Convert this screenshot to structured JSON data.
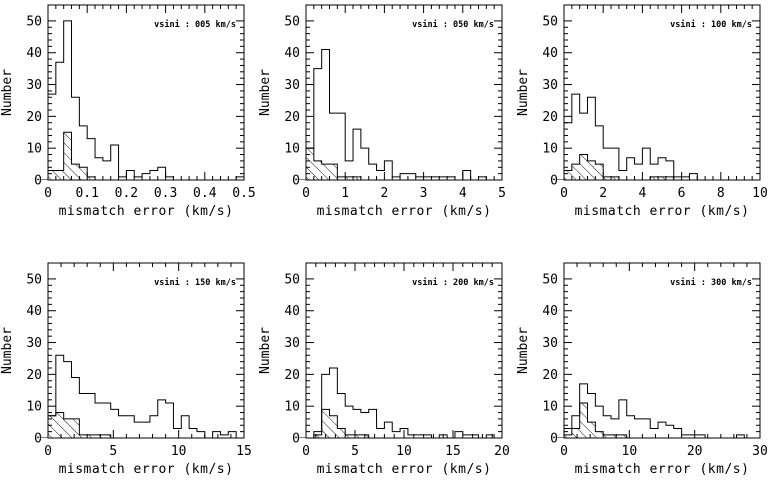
{
  "chart_data": [
    {
      "type": "bar",
      "annotation": "vsini : 005 km/s",
      "xlabel": "mismatch error (km/s)",
      "ylabel": "Number",
      "xlim": [
        0,
        0.5
      ],
      "ylim": [
        0,
        55
      ],
      "xticks": [
        0,
        0.1,
        0.2,
        0.3,
        0.4,
        0.5
      ],
      "xtick_labels": [
        "0",
        "0.1",
        "0.2",
        "0.3",
        "0.4",
        "0.5"
      ],
      "yticks": [
        0,
        10,
        20,
        30,
        40,
        50
      ],
      "ytick_labels": [
        "0",
        "10",
        "20",
        "30",
        "40",
        "50"
      ],
      "bin_edges": [
        -0.02,
        0.0,
        0.02,
        0.04,
        0.06,
        0.08,
        0.1,
        0.12,
        0.14,
        0.16,
        0.18,
        0.2,
        0.22,
        0.24,
        0.26,
        0.28,
        0.3,
        0.32,
        0.34,
        0.36,
        0.38,
        0.4,
        0.42,
        0.44,
        0.46,
        0.48,
        0.5
      ],
      "series": [
        {
          "kind": "total",
          "values": [
            0,
            27,
            37,
            50,
            26,
            17,
            13,
            7,
            6,
            11,
            1,
            3,
            1,
            2,
            3,
            4,
            1,
            0,
            0,
            0,
            0,
            0,
            0,
            0,
            0,
            1
          ]
        },
        {
          "kind": "hatched",
          "values": [
            0,
            3,
            3,
            15,
            5,
            4,
            1,
            0,
            0,
            0,
            0,
            0,
            0,
            0,
            0,
            0,
            0,
            0,
            0,
            0,
            0,
            0,
            0,
            0,
            0,
            0
          ]
        }
      ]
    },
    {
      "type": "bar",
      "annotation": "vsini : 050 km/s",
      "xlabel": "mismatch error (km/s)",
      "ylabel": "Number",
      "xlim": [
        0,
        5
      ],
      "ylim": [
        0,
        55
      ],
      "xticks": [
        0,
        1,
        2,
        3,
        4,
        5
      ],
      "xtick_labels": [
        "0",
        "1",
        "2",
        "3",
        "4",
        "5"
      ],
      "yticks": [
        0,
        10,
        20,
        30,
        40,
        50
      ],
      "ytick_labels": [
        "0",
        "10",
        "20",
        "30",
        "40",
        "50"
      ],
      "bin_edges": [
        -0.2,
        0.0,
        0.2,
        0.4,
        0.6,
        0.8,
        1.0,
        1.2,
        1.4,
        1.6,
        1.8,
        2.0,
        2.2,
        2.4,
        2.6,
        2.8,
        3.0,
        3.2,
        3.4,
        3.6,
        3.8,
        4.0,
        4.2,
        4.4,
        4.6,
        4.8,
        5.0
      ],
      "series": [
        {
          "kind": "total",
          "values": [
            0,
            10,
            35,
            41,
            21,
            21,
            6,
            16,
            10,
            5,
            3,
            6,
            1,
            2,
            2,
            1,
            1,
            1,
            1,
            1,
            0,
            3,
            0,
            1,
            0,
            0
          ]
        },
        {
          "kind": "hatched",
          "values": [
            0,
            10,
            6,
            5,
            5,
            1,
            1,
            1,
            0,
            0,
            0,
            0,
            0,
            0,
            0,
            0,
            0,
            0,
            0,
            0,
            0,
            0,
            0,
            0,
            0,
            0
          ]
        }
      ]
    },
    {
      "type": "bar",
      "annotation": "vsini : 100 km/s",
      "xlabel": "mismatch error (km/s)",
      "ylabel": "Number",
      "xlim": [
        0,
        10
      ],
      "ylim": [
        0,
        55
      ],
      "xticks": [
        0,
        2,
        4,
        6,
        8,
        10
      ],
      "xtick_labels": [
        "0",
        "2",
        "4",
        "6",
        "8",
        "10"
      ],
      "yticks": [
        0,
        10,
        20,
        30,
        40,
        50
      ],
      "ytick_labels": [
        "0",
        "10",
        "20",
        "30",
        "40",
        "50"
      ],
      "bin_edges": [
        -0.4,
        0.0,
        0.4,
        0.8,
        1.2,
        1.6,
        2.0,
        2.4,
        2.8,
        3.2,
        3.6,
        4.0,
        4.4,
        4.8,
        5.2,
        5.6,
        6.0,
        6.4,
        6.8,
        7.2,
        7.6,
        8.0,
        8.4,
        8.8,
        9.2,
        9.6,
        10.0
      ],
      "series": [
        {
          "kind": "total",
          "values": [
            0,
            18,
            27,
            21,
            26,
            17,
            10,
            10,
            3,
            7,
            5,
            10,
            5,
            7,
            6,
            1,
            1,
            2,
            0,
            0,
            0,
            0,
            0,
            0,
            0,
            0
          ]
        },
        {
          "kind": "hatched",
          "values": [
            0,
            3,
            5,
            8,
            6,
            5,
            1,
            1,
            0,
            0,
            0,
            0,
            1,
            1,
            1,
            0,
            0,
            0,
            0,
            0,
            0,
            0,
            0,
            0,
            0,
            0
          ]
        }
      ]
    },
    {
      "type": "bar",
      "annotation": "vsini : 150 km/s",
      "xlabel": "mismatch error (km/s)",
      "ylabel": "Number",
      "xlim": [
        0,
        15
      ],
      "ylim": [
        0,
        55
      ],
      "xticks": [
        0,
        5,
        10,
        15
      ],
      "xtick_labels": [
        "0",
        "5",
        "10",
        "15"
      ],
      "yticks": [
        0,
        10,
        20,
        30,
        40,
        50
      ],
      "ytick_labels": [
        "0",
        "10",
        "20",
        "30",
        "40",
        "50"
      ],
      "bin_edges": [
        -0.6,
        0.0,
        0.6,
        1.2,
        1.8,
        2.4,
        3.0,
        3.6,
        4.2,
        4.8,
        5.4,
        6.0,
        6.6,
        7.2,
        7.8,
        8.4,
        9.0,
        9.6,
        10.2,
        10.8,
        11.4,
        12.0,
        12.6,
        13.2,
        13.8,
        14.4,
        15.0
      ],
      "series": [
        {
          "kind": "total",
          "values": [
            0,
            7,
            26,
            24,
            19,
            14,
            14,
            11,
            11,
            9,
            7,
            7,
            5,
            5,
            7,
            12,
            11,
            3,
            7,
            3,
            2,
            0,
            2,
            1,
            2,
            0
          ]
        },
        {
          "kind": "hatched",
          "values": [
            0,
            7,
            8,
            6,
            6,
            1,
            1,
            1,
            1,
            0,
            0,
            0,
            0,
            0,
            0,
            0,
            0,
            0,
            0,
            0,
            0,
            0,
            0,
            0,
            0,
            0
          ]
        }
      ]
    },
    {
      "type": "bar",
      "annotation": "vsini : 200 km/s",
      "xlabel": "mismatch error (km/s)",
      "ylabel": "Number",
      "xlim": [
        0,
        20
      ],
      "ylim": [
        0,
        55
      ],
      "xticks": [
        0,
        5,
        10,
        15,
        20
      ],
      "xtick_labels": [
        "0",
        "5",
        "10",
        "15",
        "20"
      ],
      "yticks": [
        0,
        10,
        20,
        30,
        40,
        50
      ],
      "ytick_labels": [
        "0",
        "10",
        "20",
        "30",
        "40",
        "50"
      ],
      "bin_edges": [
        -0.8,
        0.0,
        0.8,
        1.6,
        2.4,
        3.2,
        4.0,
        4.8,
        5.6,
        6.4,
        7.2,
        8.0,
        8.8,
        9.6,
        10.4,
        11.2,
        12.0,
        12.8,
        13.6,
        14.4,
        15.2,
        16.0,
        16.8,
        17.6,
        18.4,
        19.2,
        20.0
      ],
      "series": [
        {
          "kind": "total",
          "values": [
            0,
            0,
            2,
            20,
            22,
            14,
            10,
            9,
            8,
            9,
            3,
            5,
            2,
            3,
            1,
            1,
            1,
            0,
            1,
            0,
            2,
            1,
            1,
            0,
            1,
            0
          ]
        },
        {
          "kind": "hatched",
          "values": [
            0,
            0,
            1,
            9,
            7,
            3,
            1,
            1,
            1,
            0,
            0,
            0,
            0,
            0,
            0,
            0,
            0,
            0,
            0,
            0,
            0,
            0,
            0,
            0,
            0,
            0
          ]
        }
      ]
    },
    {
      "type": "bar",
      "annotation": "vsini : 300 km/s",
      "xlabel": "mismatch error (km/s)",
      "ylabel": "Number",
      "xlim": [
        0,
        30
      ],
      "ylim": [
        0,
        55
      ],
      "xticks": [
        0,
        10,
        20,
        30
      ],
      "xtick_labels": [
        "0",
        "10",
        "20",
        "30"
      ],
      "yticks": [
        0,
        10,
        20,
        30,
        40,
        50
      ],
      "ytick_labels": [
        "0",
        "10",
        "20",
        "30",
        "40",
        "50"
      ],
      "bin_edges": [
        -1.2,
        0.0,
        1.2,
        2.4,
        3.6,
        4.8,
        6.0,
        7.2,
        8.4,
        9.6,
        10.8,
        12.0,
        13.2,
        14.4,
        15.6,
        16.8,
        18.0,
        19.2,
        20.4,
        21.6,
        22.8,
        24.0,
        25.2,
        26.4,
        27.6,
        28.8,
        30.0
      ],
      "series": [
        {
          "kind": "total",
          "values": [
            0,
            3,
            7,
            17,
            14,
            10,
            7,
            6,
            12,
            7,
            6,
            6,
            3,
            5,
            4,
            3,
            1,
            1,
            1,
            0,
            0,
            0,
            0,
            1,
            0,
            0
          ]
        },
        {
          "kind": "hatched",
          "values": [
            0,
            1,
            3,
            11,
            5,
            2,
            1,
            1,
            1,
            0,
            0,
            0,
            0,
            0,
            0,
            0,
            0,
            0,
            0,
            0,
            0,
            0,
            0,
            0,
            0,
            0
          ]
        }
      ]
    }
  ]
}
